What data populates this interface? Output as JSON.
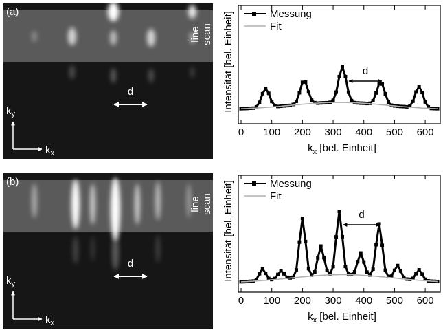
{
  "chart_data": [
    {
      "type": "line",
      "xlabel": [
        "k",
        "x",
        " [bel. Einheit]"
      ],
      "ylabel": "Intensität [bel. Einheit]",
      "x": [
        0,
        10,
        20,
        30,
        40,
        50,
        60,
        70,
        80,
        90,
        100,
        110,
        120,
        130,
        140,
        150,
        160,
        170,
        180,
        190,
        200,
        210,
        220,
        230,
        240,
        250,
        260,
        270,
        280,
        290,
        300,
        310,
        320,
        330,
        340,
        350,
        360,
        370,
        380,
        390,
        400,
        410,
        420,
        430,
        440,
        450,
        460,
        470,
        480,
        490,
        500,
        510,
        520,
        530,
        540,
        550,
        560,
        570,
        580,
        590,
        600,
        610,
        620,
        630,
        640
      ],
      "series": [
        {
          "name": "Messung",
          "color": "#000000",
          "values": [
            12.7,
            12.8,
            12.9,
            13.1,
            13.2,
            14.3,
            18.1,
            25.4,
            29.8,
            25.7,
            18.8,
            15.4,
            14.6,
            14.8,
            15.1,
            15.3,
            15.5,
            16.3,
            18.9,
            26.2,
            35.0,
            35.2,
            26.9,
            20.0,
            17.8,
            17.4,
            17.6,
            17.7,
            17.8,
            18.1,
            19.8,
            26.7,
            39.9,
            48.0,
            39.9,
            26.6,
            19.6,
            17.9,
            17.6,
            17.4,
            17.3,
            17.1,
            17.3,
            19.5,
            26.0,
            34.1,
            33.6,
            25.3,
            18.3,
            15.7,
            15.1,
            14.8,
            14.6,
            14.5,
            14.3,
            15.1,
            19.0,
            26.8,
            31.5,
            26.4,
            18.4,
            14.2,
            12.9,
            12.8,
            12.7
          ]
        },
        {
          "name": "Fit",
          "color": "#b0b0b0",
          "values": [
            12.7,
            12.8,
            12.9,
            13.1,
            13.2,
            13.3,
            13.5,
            13.7,
            13.8,
            14.0,
            14.2,
            14.4,
            14.6,
            14.8,
            15.1,
            15.3,
            15.5,
            15.8,
            16.0,
            16.2,
            16.5,
            16.7,
            16.9,
            17.1,
            17.3,
            17.4,
            17.6,
            17.7,
            17.8,
            17.9,
            18.0,
            18.0,
            18.0,
            18.0,
            18.0,
            17.9,
            17.8,
            17.7,
            17.6,
            17.4,
            17.3,
            17.1,
            16.9,
            16.7,
            16.5,
            16.2,
            16.0,
            15.8,
            15.5,
            15.3,
            15.1,
            14.8,
            14.6,
            14.4,
            14.2,
            14.0,
            13.8,
            13.7,
            13.5,
            13.3,
            13.2,
            13.1,
            12.9,
            12.8,
            12.7
          ]
        }
      ],
      "xlim": [
        -9,
        649
      ],
      "xticks": [
        0,
        100,
        200,
        300,
        400,
        500,
        600
      ],
      "ylim": [
        0,
        100
      ],
      "legend": "upper left",
      "annotation": "d"
    },
    {
      "type": "line",
      "xlabel": [
        "k",
        "x",
        " [bel. Einheit]"
      ],
      "ylabel": "Intensität [bel. Einheit]",
      "x": [
        0,
        10,
        20,
        30,
        40,
        50,
        60,
        70,
        80,
        90,
        100,
        110,
        120,
        130,
        140,
        150,
        160,
        170,
        180,
        190,
        200,
        210,
        220,
        230,
        240,
        250,
        260,
        270,
        280,
        290,
        300,
        310,
        320,
        330,
        340,
        350,
        360,
        370,
        380,
        390,
        400,
        410,
        420,
        430,
        440,
        450,
        460,
        470,
        480,
        490,
        500,
        510,
        520,
        530,
        540,
        550,
        560,
        570,
        580,
        590,
        600,
        610,
        620,
        630,
        640
      ],
      "series": [
        {
          "name": "Messung",
          "color": "#000000",
          "values": [
            8.9,
            9.0,
            9.1,
            9.3,
            9.5,
            10.9,
            15.8,
            20.0,
            16.1,
            11.7,
            10.8,
            11.7,
            15.2,
            18.3,
            15.7,
            12.7,
            12.2,
            12.8,
            19.1,
            42.8,
            63.1,
            43.3,
            20.1,
            14.6,
            17.3,
            29.2,
            39.4,
            29.5,
            18.5,
            15.6,
            21.9,
            47.3,
            69.0,
            47.4,
            22.0,
            15.6,
            15.1,
            17.3,
            26.1,
            33.5,
            25.8,
            17.2,
            14.7,
            19.7,
            40.6,
            58.3,
            40.1,
            18.7,
            13.2,
            13.7,
            18.7,
            22.8,
            18.1,
            12.7,
            11.2,
            11.0,
            11.8,
            15.8,
            19.1,
            15.4,
            11.0,
            9.7,
            9.4,
            9.3,
            9.1
          ]
        },
        {
          "name": "Fit",
          "color": "#b0b0b0",
          "values": [
            8.9,
            9.0,
            9.1,
            9.3,
            9.4,
            9.6,
            9.8,
            10.0,
            10.1,
            10.4,
            10.6,
            10.8,
            11.0,
            11.3,
            11.5,
            11.8,
            12.1,
            12.3,
            12.6,
            12.8,
            13.1,
            13.3,
            13.6,
            13.8,
            14.0,
            14.2,
            14.4,
            14.5,
            14.7,
            14.8,
            14.9,
            14.9,
            15.0,
            15.0,
            15.0,
            14.9,
            14.9,
            14.8,
            14.7,
            14.5,
            14.4,
            14.2,
            14.0,
            13.8,
            13.6,
            13.3,
            13.1,
            12.8,
            12.6,
            12.3,
            12.1,
            11.8,
            11.5,
            11.3,
            11.0,
            10.8,
            10.6,
            10.4,
            10.1,
            10.0,
            9.8,
            9.6,
            9.4,
            9.3,
            9.1
          ]
        }
      ],
      "xlim": [
        -9,
        649
      ],
      "xticks": [
        0,
        100,
        200,
        300,
        400,
        500,
        600
      ],
      "ylim": [
        0,
        100
      ],
      "legend": "upper left",
      "annotation": "d"
    }
  ],
  "images": [
    {
      "label": "(a)",
      "region": [
        "line",
        "scan"
      ],
      "spacing": "d",
      "axis_y": [
        "k",
        "y"
      ],
      "axis_x": [
        "k",
        "x"
      ]
    },
    {
      "label": "(b)",
      "region": [
        "line",
        "scan"
      ],
      "spacing": "d",
      "axis_y": [
        "k",
        "y"
      ],
      "axis_x": [
        "k",
        "x"
      ]
    }
  ]
}
